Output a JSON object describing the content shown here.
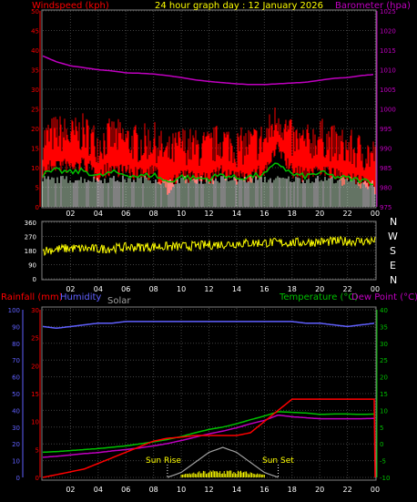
{
  "header": {
    "windspeed_label": "Windspeed (kph)",
    "title": "24 hour graph day : 12 January 2026",
    "barometer_label": "Barometer (hpa)"
  },
  "bottom_header": {
    "rainfall_label": "Rainfall (mm)",
    "humidity_label": "Humidity",
    "solar_label": "Solar",
    "temperature_label": "Temperature (°C)",
    "dewpoint_label": "Dew Point (°C)"
  },
  "annotations": {
    "sunrise": "Sun Rise",
    "sunset": "Sun Set"
  },
  "x_ticks": [
    "02",
    "04",
    "06",
    "08",
    "10",
    "12",
    "14",
    "16",
    "18",
    "20",
    "22",
    "00"
  ],
  "compass": [
    "N",
    "W",
    "S",
    "E",
    "N"
  ],
  "colors": {
    "wind": "#ff0000",
    "wind_axis": "#ff0000",
    "baro": "#c000c0",
    "gust_avg": "#00c000",
    "direction": "#ffff00",
    "humidity": "#6060ff",
    "rain": "#ff0000",
    "temperature": "#00c000",
    "dewpoint": "#c000c0",
    "solar": "#a0a0a0",
    "grid": "#404040"
  },
  "chart_data": [
    {
      "type": "line",
      "name": "wind-barometer",
      "xlabel": "",
      "ylabel": "Windspeed (kph)",
      "y2label": "Barometer (hpa)",
      "ylim": [
        0,
        50
      ],
      "y2lim": [
        975,
        1025
      ],
      "yticks": [
        "0",
        "5",
        "10",
        "15",
        "20",
        "25",
        "30",
        "35",
        "40",
        "45",
        "50"
      ],
      "y2ticks": [
        "975",
        "980",
        "985",
        "990",
        "995",
        "1000",
        "1005",
        "1010",
        "1015",
        "1020",
        "1025"
      ],
      "series": [
        {
          "name": "Windspeed (kph)",
          "x": [
            0,
            1,
            2,
            3,
            4,
            5,
            6,
            7,
            8,
            9,
            10,
            11,
            12,
            13,
            14,
            15,
            16,
            17,
            18,
            19,
            20,
            21,
            22,
            23,
            24
          ],
          "values": [
            15,
            17,
            16,
            17,
            14,
            16,
            15,
            14,
            15,
            11,
            14,
            13,
            13,
            15,
            13,
            14,
            15,
            21,
            15,
            14,
            16,
            14,
            13,
            12,
            11
          ]
        },
        {
          "name": "Barometer (hpa)",
          "x": [
            0,
            1,
            2,
            3,
            4,
            5,
            6,
            7,
            8,
            9,
            10,
            11,
            12,
            13,
            14,
            15,
            16,
            17,
            18,
            19,
            20,
            21,
            22,
            23,
            24
          ],
          "values": [
            1013.5,
            1012,
            1011,
            1010.5,
            1010,
            1009.7,
            1009.2,
            1009.1,
            1008.9,
            1008.5,
            1008,
            1007.4,
            1007,
            1006.7,
            1006.4,
            1006.2,
            1006.2,
            1006.4,
            1006.6,
            1006.8,
            1007.3,
            1007.8,
            1008,
            1008.5,
            1008.8
          ]
        }
      ]
    },
    {
      "type": "scatter",
      "name": "wind-direction",
      "ylim": [
        0,
        360
      ],
      "yticks": [
        "0",
        "90",
        "180",
        "270",
        "360"
      ],
      "series": [
        {
          "name": "Wind direction",
          "x": [
            0,
            2,
            4,
            6,
            8,
            10,
            12,
            14,
            16,
            18,
            20,
            22,
            24
          ],
          "values": [
            180,
            195,
            190,
            200,
            205,
            205,
            215,
            225,
            230,
            230,
            235,
            240,
            240
          ]
        }
      ]
    },
    {
      "type": "line",
      "name": "temperature-rain-humidity",
      "y_rain_lim": [
        0,
        30
      ],
      "y_rain_ticks": [
        "0",
        "5",
        "10",
        "15",
        "20",
        "25",
        "30"
      ],
      "y_hum_lim": [
        0,
        100
      ],
      "y_hum_ticks": [
        "0",
        "10",
        "20",
        "30",
        "40",
        "50",
        "60",
        "70",
        "80",
        "90",
        "100"
      ],
      "y_temp_lim": [
        -10,
        40
      ],
      "y_temp_ticks": [
        "-10",
        "-5",
        "0",
        "5",
        "10",
        "15",
        "20",
        "25",
        "30",
        "35",
        "40"
      ],
      "series": [
        {
          "name": "Humidity",
          "x": [
            0,
            1,
            2,
            3,
            4,
            5,
            6,
            7,
            8,
            9,
            10,
            11,
            12,
            13,
            14,
            15,
            16,
            17,
            18,
            19,
            20,
            21,
            22,
            23,
            24
          ],
          "values": [
            90,
            89,
            90,
            91,
            92,
            92,
            93,
            93,
            93,
            93,
            93,
            93,
            93,
            93,
            93,
            93,
            93,
            93,
            93,
            92,
            92,
            91,
            90,
            91,
            92
          ]
        },
        {
          "name": "Rainfall (mm)",
          "x": [
            0,
            1,
            2,
            3,
            4,
            5,
            6,
            7,
            8,
            9,
            10,
            11,
            12,
            13,
            14,
            15,
            16,
            17,
            18,
            19,
            20,
            21,
            22,
            23,
            24
          ],
          "values": [
            0,
            0.5,
            1,
            1.5,
            2.5,
            3.5,
            4.5,
            5.5,
            6.5,
            7,
            7.2,
            7.5,
            7.5,
            7.5,
            7.5,
            8,
            10,
            12,
            14,
            14,
            14,
            14,
            14,
            14,
            14
          ]
        },
        {
          "name": "Temperature (°C)",
          "x": [
            0,
            1,
            2,
            3,
            4,
            5,
            6,
            7,
            8,
            9,
            10,
            11,
            12,
            13,
            14,
            15,
            16,
            17,
            18,
            19,
            20,
            21,
            22,
            23,
            24
          ],
          "values": [
            -2.5,
            -2.3,
            -2,
            -1.7,
            -1.4,
            -1,
            -0.6,
            0,
            0.6,
            1.3,
            2.2,
            3.3,
            4.3,
            5,
            6,
            7.2,
            8.3,
            9.6,
            9.4,
            9.2,
            8.8,
            8.9,
            8.9,
            8.8,
            8.9
          ]
        },
        {
          "name": "Dew Point (°C)",
          "x": [
            0,
            1,
            2,
            3,
            4,
            5,
            6,
            7,
            8,
            9,
            10,
            11,
            12,
            13,
            14,
            15,
            16,
            17,
            18,
            19,
            20,
            21,
            22,
            23,
            24
          ],
          "values": [
            -4,
            -3.7,
            -3.3,
            -2.9,
            -2.6,
            -2.1,
            -1.7,
            -1.2,
            -0.6,
            0.1,
            1,
            2,
            3,
            3.8,
            4.8,
            6,
            7,
            8.6,
            8.1,
            7.8,
            7.5,
            7.5,
            7.5,
            7.5,
            7.6
          ]
        },
        {
          "name": "Solar",
          "x": [
            9,
            10,
            11,
            12,
            13,
            14,
            15,
            16,
            17
          ],
          "values": [
            0,
            0.5,
            1.5,
            2.5,
            3,
            2.5,
            1.5,
            0.5,
            0
          ]
        }
      ]
    }
  ]
}
